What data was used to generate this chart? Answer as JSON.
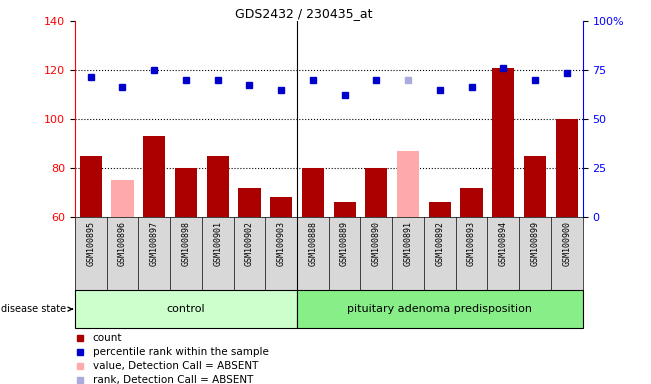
{
  "title": "GDS2432 / 230435_at",
  "samples": [
    "GSM100895",
    "GSM100896",
    "GSM100897",
    "GSM100898",
    "GSM100901",
    "GSM100902",
    "GSM100903",
    "GSM100888",
    "GSM100889",
    "GSM100890",
    "GSM100891",
    "GSM100892",
    "GSM100893",
    "GSM100894",
    "GSM100899",
    "GSM100900"
  ],
  "bar_values": [
    85,
    75,
    93,
    80,
    85,
    72,
    68,
    80,
    66,
    80,
    87,
    66,
    72,
    121,
    85,
    100
  ],
  "bar_absent": [
    false,
    true,
    false,
    false,
    false,
    false,
    false,
    false,
    false,
    false,
    true,
    false,
    false,
    false,
    false,
    false
  ],
  "rank_values": [
    117,
    113,
    120,
    116,
    116,
    114,
    112,
    116,
    110,
    116,
    116,
    112,
    113,
    121,
    116,
    119
  ],
  "rank_absent": [
    false,
    false,
    false,
    false,
    false,
    false,
    false,
    false,
    false,
    false,
    true,
    false,
    false,
    false,
    false,
    false
  ],
  "n_control": 7,
  "control_label": "control",
  "disease_label": "pituitary adenoma predisposition",
  "disease_state_label": "disease state",
  "ylim_left": [
    60,
    140
  ],
  "ylim_right": [
    0,
    100
  ],
  "yticks_left": [
    60,
    80,
    100,
    120,
    140
  ],
  "yticks_right": [
    0,
    25,
    50,
    75,
    100
  ],
  "ytick_labels_right": [
    "0",
    "25",
    "50",
    "75",
    "100%"
  ],
  "bar_color_present": "#aa0000",
  "bar_color_absent": "#ffaaaa",
  "rank_color_present": "#0000cc",
  "rank_color_absent": "#aaaadd",
  "background_plot": "#ffffff",
  "background_labels": "#d8d8d8",
  "background_control": "#ccffcc",
  "background_disease": "#88ee88",
  "legend_items": [
    {
      "label": "count",
      "color": "#aa0000"
    },
    {
      "label": "percentile rank within the sample",
      "color": "#0000cc"
    },
    {
      "label": "value, Detection Call = ABSENT",
      "color": "#ffaaaa"
    },
    {
      "label": "rank, Detection Call = ABSENT",
      "color": "#aaaadd"
    }
  ]
}
